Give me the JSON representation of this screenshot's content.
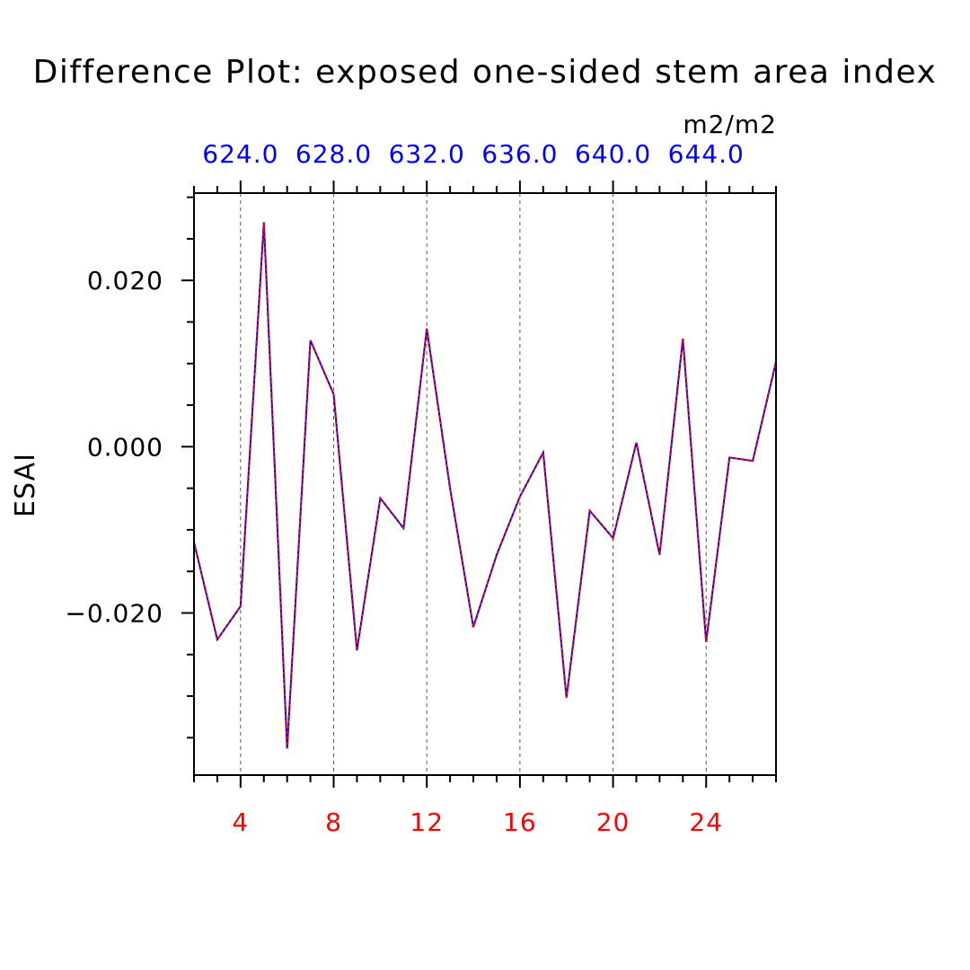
{
  "chart_data": {
    "type": "line",
    "title": "Difference Plot: exposed one-sided stem area index",
    "units": "m2/m2",
    "ylabel": "ESAI",
    "xlabel": "",
    "xlim": [
      2,
      27
    ],
    "ylim": [
      -0.0395,
      0.0305
    ],
    "grid": "vertical dashed lines at major bottom ticks",
    "bottom_axis": {
      "ticks": [
        4,
        8,
        12,
        16,
        20,
        24
      ],
      "tick_labels": [
        "4",
        "8",
        "12",
        "16",
        "20",
        "24"
      ],
      "color": "#ff0000"
    },
    "top_axis": {
      "ticks": [
        4,
        8,
        12,
        16,
        20,
        24
      ],
      "tick_labels": [
        "624.0",
        "628.0",
        "632.0",
        "636.0",
        "640.0",
        "644.0"
      ],
      "color": "#0000ff"
    },
    "left_axis": {
      "ticks": [
        0.02,
        0.0,
        -0.02
      ],
      "tick_labels": [
        "0.020",
        "0.000",
        "−0.020"
      ]
    },
    "x": [
      2,
      3,
      4,
      5,
      6,
      7,
      8,
      9,
      10,
      11,
      12,
      13,
      14,
      15,
      16,
      17,
      18,
      19,
      20,
      21,
      22,
      23,
      24,
      25,
      26,
      27
    ],
    "series": [
      {
        "style": "solid",
        "color": "#0000ff",
        "values": [
          -0.0115,
          -0.0232,
          -0.0192,
          0.027,
          -0.0363,
          0.0128,
          0.0063,
          -0.0245,
          -0.0062,
          -0.0098,
          0.0142,
          -0.005,
          -0.0217,
          -0.013,
          -0.006,
          -0.0007,
          -0.0302,
          -0.0077,
          -0.011,
          0.0005,
          -0.013,
          0.013,
          -0.0235,
          -0.0013,
          -0.0017,
          0.0102
        ]
      },
      {
        "style": "dashed",
        "color": "#ff0000",
        "values": [
          -0.0115,
          -0.0232,
          -0.0192,
          0.027,
          -0.0363,
          0.0128,
          0.0063,
          -0.0245,
          -0.0062,
          -0.0098,
          0.0142,
          -0.005,
          -0.0217,
          -0.013,
          -0.006,
          -0.0007,
          -0.0302,
          -0.0077,
          -0.011,
          0.0005,
          -0.013,
          0.013,
          -0.0235,
          -0.0013,
          -0.0017,
          0.0102
        ]
      }
    ]
  }
}
